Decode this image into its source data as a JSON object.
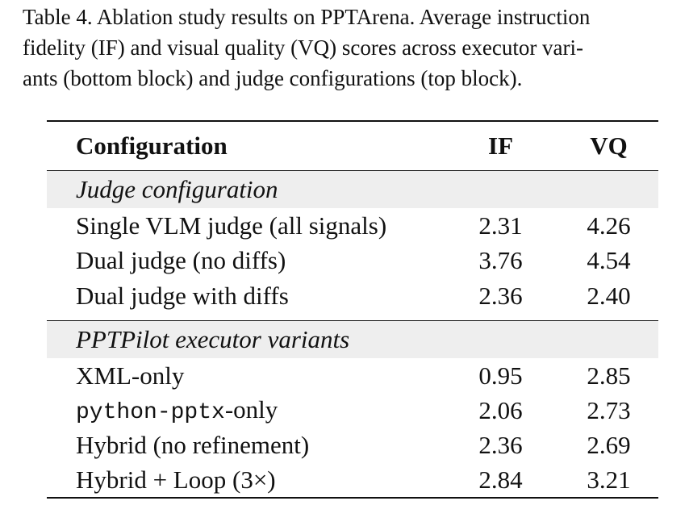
{
  "caption": {
    "line1": "Table 4. Ablation study results on PPTArena. Average instruction",
    "line2": "fidelity (IF) and visual quality (VQ) scores across executor vari-",
    "line3": "ants (bottom block) and judge configurations (top block)."
  },
  "table": {
    "headers": [
      "Configuration",
      "IF",
      "VQ"
    ],
    "judge_section": {
      "title": "Judge configuration",
      "rows": [
        {
          "config": "Single VLM judge (all signals)",
          "if": "2.31",
          "vq": "4.26"
        },
        {
          "config": "Dual judge (no diffs)",
          "if": "3.76",
          "vq": "4.54"
        },
        {
          "config": "Dual judge with diffs",
          "if": "2.36",
          "vq": "2.40"
        }
      ]
    },
    "executor_section": {
      "title": "PPTPilot executor variants",
      "rows": [
        {
          "config": "XML-only",
          "if": "0.95",
          "vq": "2.85"
        },
        {
          "config_mono": "python-pptx",
          "config_suffix": "-only",
          "if": "2.06",
          "vq": "2.73"
        },
        {
          "config": "Hybrid (no refinement)",
          "if": "2.36",
          "vq": "2.69"
        },
        {
          "config": "Hybrid + Loop (3×)",
          "if": "2.84",
          "vq": "3.21"
        }
      ]
    }
  }
}
